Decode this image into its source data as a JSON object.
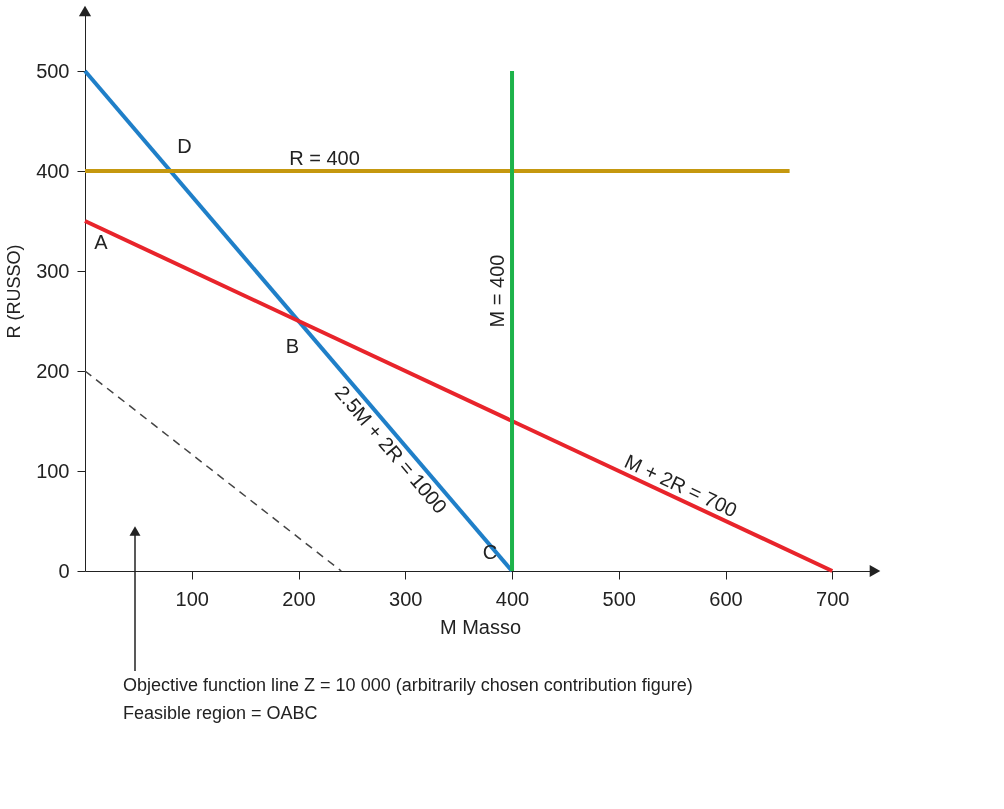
{
  "chart_data": {
    "type": "line",
    "xlabel": "M Masso",
    "ylabel": "R (RUSSO)",
    "xlim": [
      0,
      740
    ],
    "ylim": [
      0,
      560
    ],
    "xticks": [
      100,
      200,
      300,
      400,
      500,
      600,
      700
    ],
    "yticks": [
      0,
      100,
      200,
      300,
      400,
      500
    ],
    "grid": false,
    "marker": "none",
    "series": [
      {
        "name": "2.5M + 2R = 1000",
        "color": "#1f7fc8",
        "x": [
          0,
          400
        ],
        "values": [
          500,
          0
        ],
        "line_style": "solid"
      },
      {
        "name": "M + 2R = 700",
        "color": "#e8242b",
        "x": [
          0,
          700
        ],
        "values": [
          350,
          0
        ],
        "line_style": "solid"
      },
      {
        "name": "R = 400",
        "color": "#c5980f",
        "x": [
          0,
          660
        ],
        "values": [
          400,
          400
        ],
        "line_style": "solid"
      },
      {
        "name": "M = 400",
        "color": "#1db34a",
        "x": [
          400,
          400
        ],
        "values": [
          0,
          500
        ],
        "line_style": "solid"
      },
      {
        "color": "#444444",
        "x": [
          0,
          240
        ],
        "values": [
          200,
          0
        ],
        "line_style": "dashed"
      }
    ],
    "annotations": [
      {
        "text": "A",
        "x": 0,
        "y": 350
      },
      {
        "text": "B",
        "x": 200,
        "y": 250
      },
      {
        "text": "C",
        "x": 400,
        "y": 0
      },
      {
        "text": "D",
        "x": 80,
        "y": 400
      },
      "Objective function line Z = 10 000 (arbitrarily chosen contribution figure)",
      "Feasible region = OABC"
    ]
  }
}
